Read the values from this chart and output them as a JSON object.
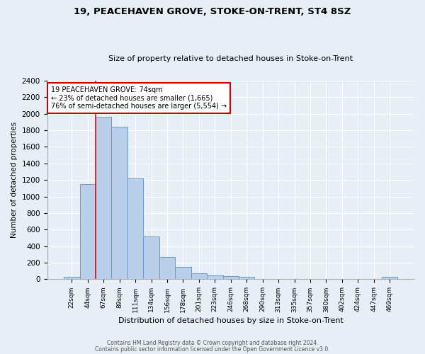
{
  "title": "19, PEACEHAVEN GROVE, STOKE-ON-TRENT, ST4 8SZ",
  "subtitle": "Size of property relative to detached houses in Stoke-on-Trent",
  "xlabel": "Distribution of detached houses by size in Stoke-on-Trent",
  "ylabel": "Number of detached properties",
  "bar_labels": [
    "22sqm",
    "44sqm",
    "67sqm",
    "89sqm",
    "111sqm",
    "134sqm",
    "156sqm",
    "178sqm",
    "201sqm",
    "223sqm",
    "246sqm",
    "268sqm",
    "290sqm",
    "313sqm",
    "335sqm",
    "357sqm",
    "380sqm",
    "402sqm",
    "424sqm",
    "447sqm",
    "469sqm"
  ],
  "bar_values": [
    30,
    1150,
    1960,
    1840,
    1220,
    520,
    265,
    148,
    75,
    45,
    35,
    30,
    5,
    3,
    2,
    2,
    2,
    2,
    2,
    2,
    30
  ],
  "bar_color": "#b8d0ea",
  "bar_edge_color": "#6699cc",
  "bg_color": "#e8eef5",
  "grid_color": "#ffffff",
  "red_line_x": 1.5,
  "annotation_title": "19 PEACEHAVEN GROVE: 74sqm",
  "annotation_line1": "← 23% of detached houses are smaller (1,665)",
  "annotation_line2": "76% of semi-detached houses are larger (5,554) →",
  "ylim": [
    0,
    2400
  ],
  "yticks": [
    0,
    200,
    400,
    600,
    800,
    1000,
    1200,
    1400,
    1600,
    1800,
    2000,
    2200,
    2400
  ],
  "footer1": "Contains HM Land Registry data © Crown copyright and database right 2024.",
  "footer2": "Contains public sector information licensed under the Open Government Licence v3.0."
}
